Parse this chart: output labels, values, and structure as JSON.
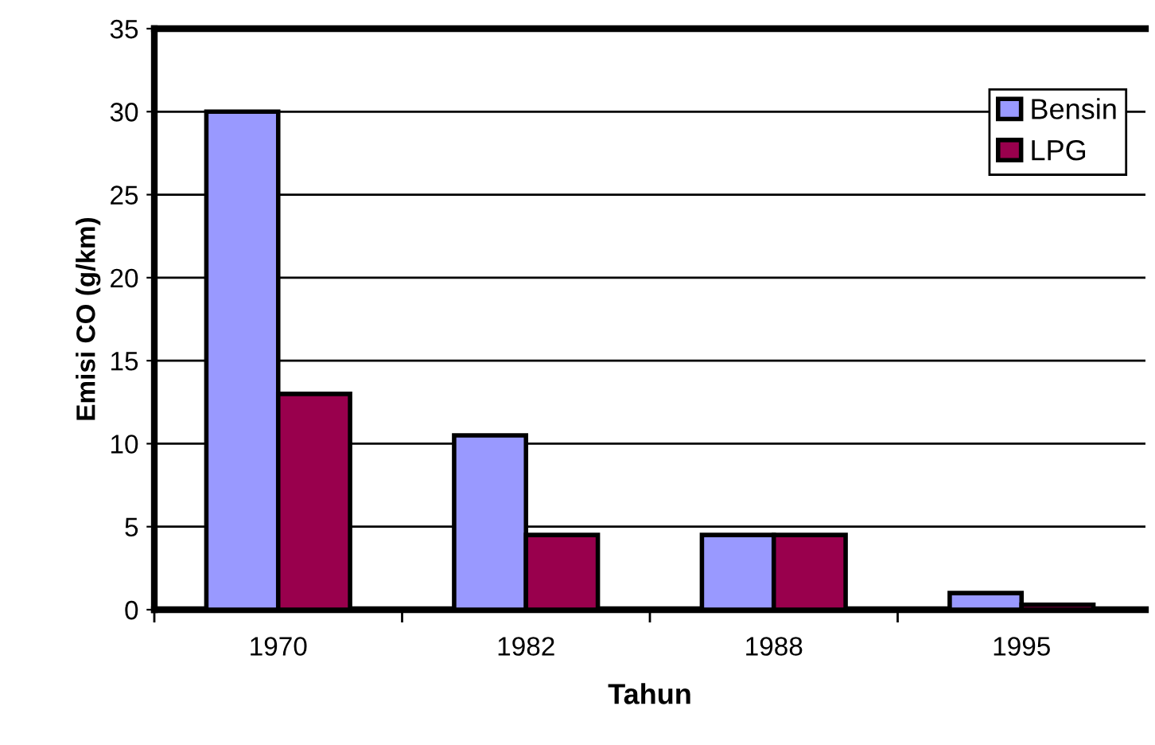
{
  "chart_data": {
    "type": "bar",
    "xlabel": "Tahun",
    "ylabel": "Emisi CO (g/km)",
    "categories": [
      "1970",
      "1982",
      "1988",
      "1995"
    ],
    "series": [
      {
        "name": "Bensin",
        "color": "#9999ff",
        "values": [
          30,
          10.5,
          4.5,
          1
        ]
      },
      {
        "name": "LPG",
        "color": "#99004d",
        "values": [
          13,
          4.5,
          4.5,
          0.3
        ]
      }
    ],
    "ylim": [
      0,
      35
    ],
    "yticks": [
      0,
      5,
      10,
      15,
      20,
      25,
      30,
      35
    ],
    "grid": "y",
    "legend": "top right"
  }
}
